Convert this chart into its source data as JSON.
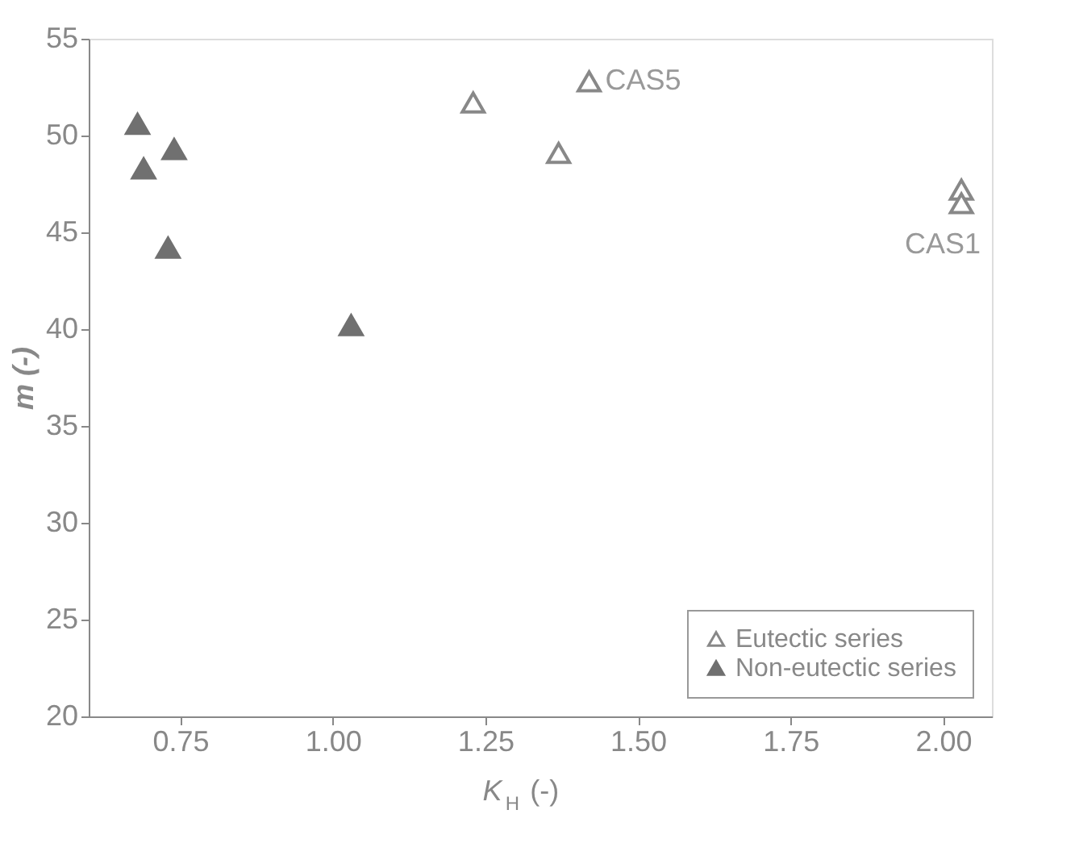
{
  "chart_data": {
    "type": "scatter",
    "xlabel": "K$_{H}$ (-)",
    "ylabel": "m (-)",
    "xlim": [
      0.6,
      2.08
    ],
    "xticks": [
      0.75,
      {
        "value": 1.0,
        "label": "1.00"
      },
      1.25,
      {
        "value": 1.5,
        "label": "1.50"
      },
      1.75,
      {
        "value": 2.0,
        "label": "2.00"
      }
    ],
    "ylim": [
      20,
      55
    ],
    "yticks": [
      20,
      25,
      30,
      35,
      40,
      45,
      50,
      55
    ],
    "grid": false,
    "legend": "bottom right",
    "marker": "triangle",
    "series": [
      {
        "name": "Eutectic series",
        "color": "#888888",
        "x": [
          1.23,
          1.42,
          1.37,
          2.03,
          2.03
        ],
        "values": [
          51.7,
          52.8,
          49.1,
          47.2,
          46.5
        ]
      },
      {
        "name": "Non-eutectic series",
        "color": "#707070",
        "x": [
          0.68,
          0.69,
          0.74,
          0.73,
          1.03
        ],
        "values": [
          50.6,
          48.3,
          49.3,
          44.2,
          40.2
        ]
      }
    ],
    "annotations": [
      {
        "text": "CAS5",
        "x": 1.42,
        "y": 52.8
      },
      {
        "text": "CAS1",
        "x": 2.03,
        "y": 46.5
      }
    ]
  }
}
